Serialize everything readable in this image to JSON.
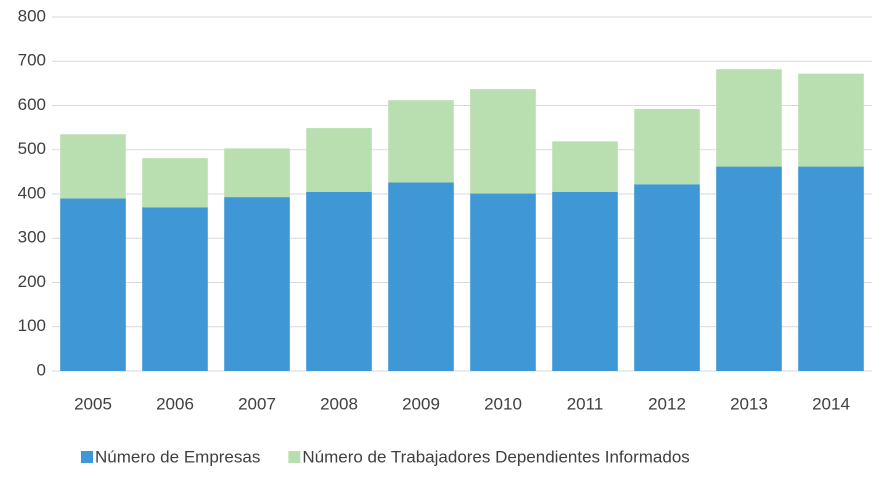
{
  "chart_data": {
    "type": "stacked_bar",
    "categories": [
      "2005",
      "2006",
      "2007",
      "2008",
      "2009",
      "2010",
      "2011",
      "2012",
      "2013",
      "2014"
    ],
    "series": [
      {
        "name": "Número de Empresas",
        "color": "#3f97d6",
        "values": [
          390,
          370,
          393,
          405,
          426,
          401,
          405,
          422,
          462,
          462
        ]
      },
      {
        "name": "Número de Trabajadores Dependientes Informados",
        "color": "#b9dfb0",
        "values": [
          145,
          111,
          110,
          144,
          186,
          236,
          114,
          170,
          220,
          210
        ]
      }
    ],
    "ylim": [
      0,
      800
    ],
    "yticks": [
      0,
      100,
      200,
      300,
      400,
      500,
      600,
      700,
      800
    ],
    "grid": true,
    "legend": "bottom"
  }
}
